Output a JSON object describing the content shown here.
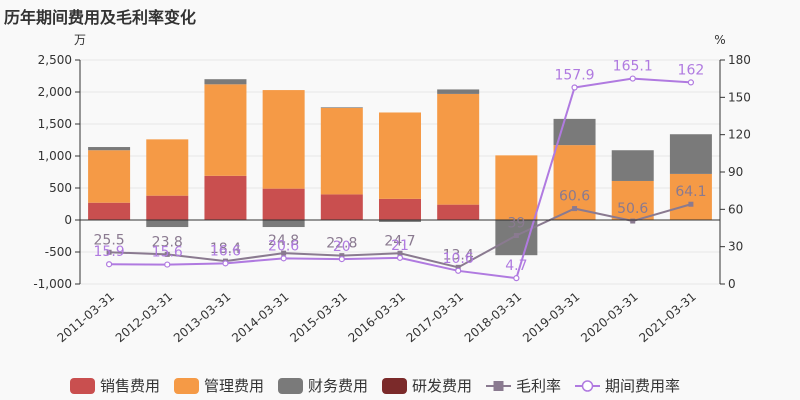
{
  "chart_data": {
    "type": "bar",
    "title": "历年期间费用及毛利率变化",
    "left_unit": "万",
    "right_unit": "%",
    "categories": [
      "2011-03-31",
      "2012-03-31",
      "2013-03-31",
      "2014-03-31",
      "2015-03-31",
      "2016-03-31",
      "2017-03-31",
      "2018-03-31",
      "2019-03-31",
      "2020-03-31",
      "2021-03-31"
    ],
    "left_axis": {
      "min": -1000,
      "max": 2500,
      "ticks": [
        2500,
        2000,
        1500,
        1000,
        500,
        0,
        -500,
        -1000
      ],
      "tick_labels": [
        "2,500",
        "2,000",
        "1,500",
        "1,000",
        "500",
        "0",
        "-500",
        "-1,000"
      ]
    },
    "right_axis": {
      "min": 0,
      "max": 180,
      "ticks": [
        180,
        150,
        120,
        90,
        60,
        30,
        0
      ],
      "tick_labels": [
        "180",
        "150",
        "120",
        "90",
        "60",
        "30",
        "0"
      ]
    },
    "series": [
      {
        "name": "销售费用",
        "type": "bar",
        "color": "#c94f4f",
        "values": [
          270,
          380,
          690,
          490,
          400,
          330,
          240,
          0,
          0,
          0,
          0
        ]
      },
      {
        "name": "管理费用",
        "type": "bar",
        "color": "#f59a46",
        "values": [
          820,
          880,
          1430,
          1540,
          1350,
          1350,
          1730,
          1010,
          1170,
          610,
          720
        ]
      },
      {
        "name": "财务费用",
        "type": "bar",
        "color": "#7a7a7a",
        "values": [
          50,
          -110,
          80,
          -110,
          10,
          -30,
          70,
          -550,
          410,
          480,
          620
        ]
      },
      {
        "name": "研发费用",
        "type": "bar",
        "color": "#7b2a2a",
        "values": [
          0,
          0,
          0,
          0,
          0,
          0,
          0,
          0,
          0,
          0,
          0
        ]
      },
      {
        "name": "毛利率",
        "type": "line",
        "color": "#8a7a90",
        "marker": "square",
        "values": [
          25.5,
          23.8,
          18.4,
          24.8,
          22.8,
          24.7,
          13.4,
          39,
          60.6,
          50.6,
          64.1
        ],
        "labels": [
          "25.5",
          "23.8",
          "18.4",
          "24.8",
          "22.8",
          "24.7",
          "13.4",
          "39",
          "60.6",
          "50.6",
          "64.1"
        ]
      },
      {
        "name": "期间费用率",
        "type": "line",
        "color": "#b07ae0",
        "marker": "circle",
        "values": [
          15.9,
          15.6,
          16.6,
          20.6,
          20,
          21,
          10.6,
          4.7,
          157.9,
          165.1,
          162
        ],
        "labels": [
          "15.9",
          "15.6",
          "16.6",
          "20.6",
          "20",
          "21",
          "10.6",
          "4.7",
          "157.9",
          "165.1",
          "162"
        ]
      }
    ],
    "legend_position": "bottom"
  }
}
